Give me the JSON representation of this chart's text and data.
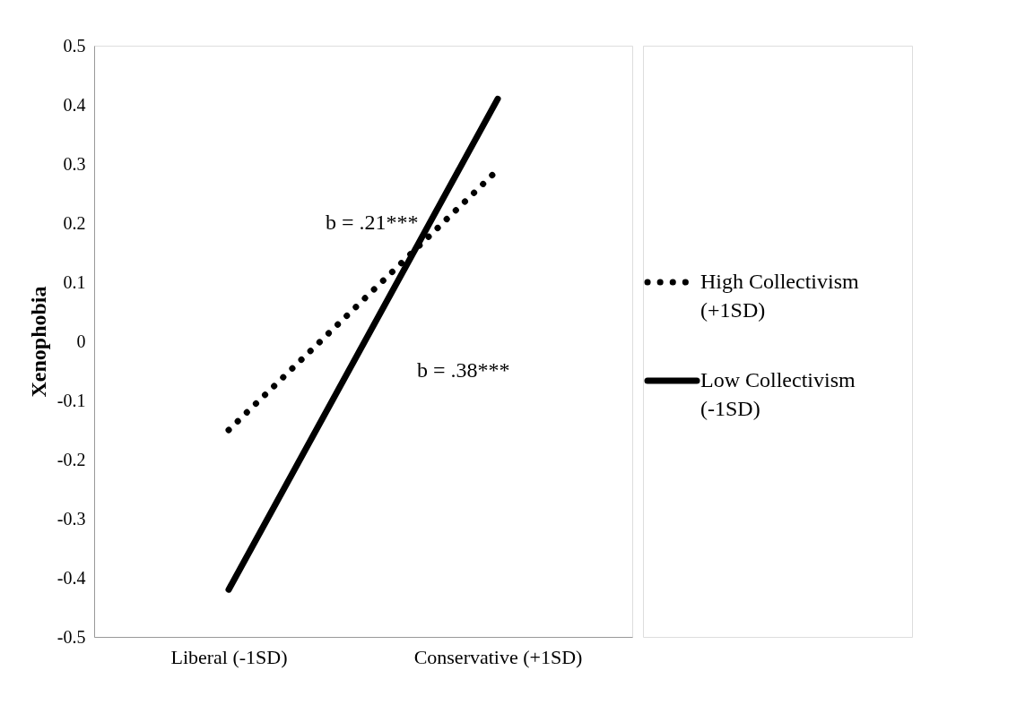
{
  "chart_data": {
    "type": "line",
    "ylabel": "Xenophobia",
    "categories": [
      "Liberal (-1SD)",
      "Conservative (+1SD)"
    ],
    "series": [
      {
        "name": "High Collectivism (+1SD)",
        "color": "#000000",
        "line_style": "dotted",
        "values": [
          -0.15,
          0.29
        ]
      },
      {
        "name": "Low Collectivism (-1SD)",
        "color": "#000000",
        "line_style": "solid",
        "values": [
          -0.42,
          0.41
        ]
      }
    ],
    "ylim": [
      -0.5,
      0.5
    ],
    "yticks": [
      -0.5,
      -0.4,
      -0.3,
      -0.2,
      -0.1,
      0,
      0.1,
      0.2,
      0.3,
      0.4,
      0.5
    ],
    "grid": false,
    "legend": "right",
    "marker": "none",
    "annotations": [
      "b = .21***",
      "b = .38***"
    ]
  }
}
